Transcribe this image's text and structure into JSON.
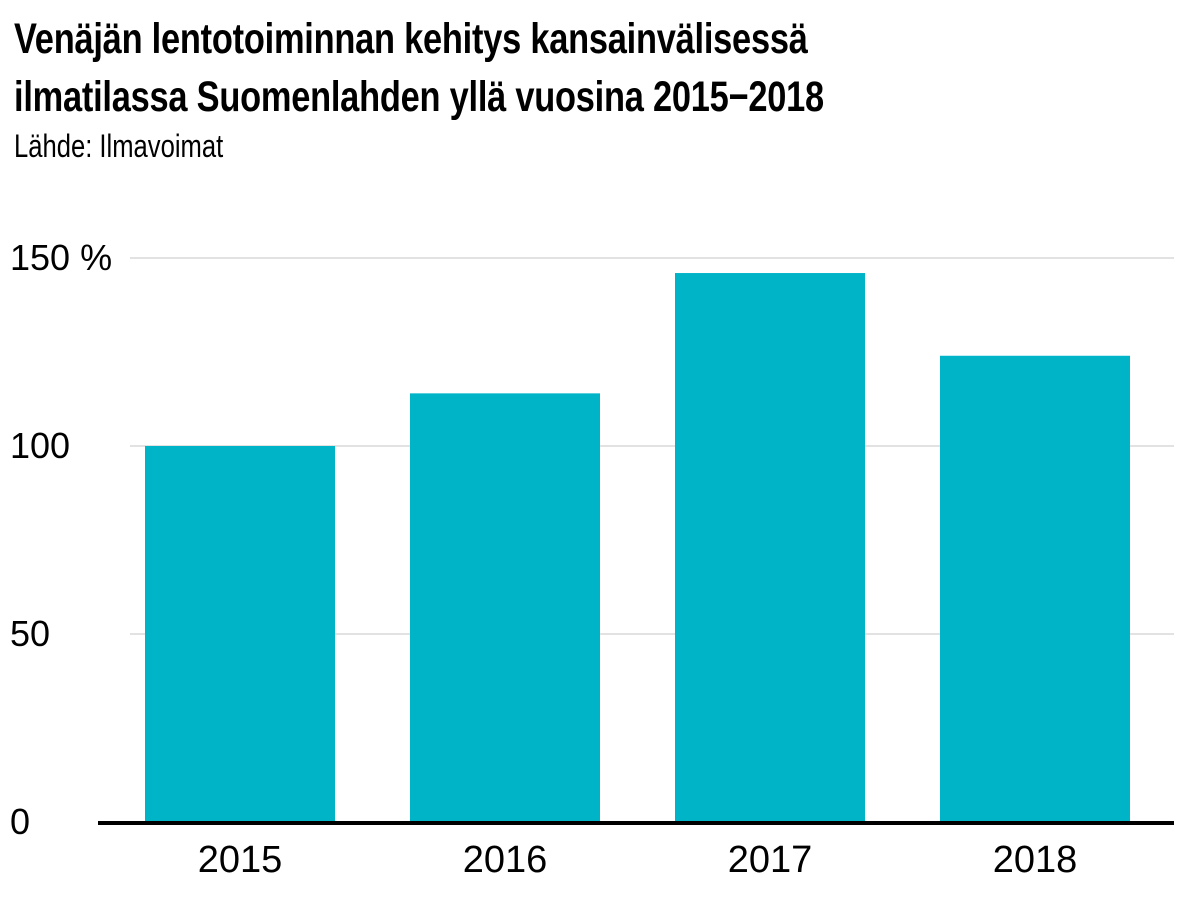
{
  "header": {
    "title_line1": "Venäjän lentotoiminnan kehitys kansainvälisessä",
    "title_line2": "ilmatilassa Suomenlahden yllä vuosina 2015−2018",
    "source": "Lähde: Ilmavoimat"
  },
  "chart_data": {
    "type": "bar",
    "title": "Venäjän lentotoiminnan kehitys kansainvälisessä ilmatilassa Suomenlahden yllä vuosina 2015−2018",
    "subtitle": "Lähde: Ilmavoimat",
    "categories": [
      "2015",
      "2016",
      "2017",
      "2018"
    ],
    "values": [
      100,
      114,
      146,
      124
    ],
    "ylim": [
      0,
      150
    ],
    "yticks": [
      0,
      50,
      100,
      150
    ],
    "ytick_labels": [
      "0",
      "50",
      "100",
      "150 %"
    ],
    "xlabel": "",
    "ylabel": "",
    "grid": true,
    "legend": "none",
    "bar_color": "#00b4c8",
    "grid_color": "#d9d9d9",
    "axis_color": "#000000"
  }
}
